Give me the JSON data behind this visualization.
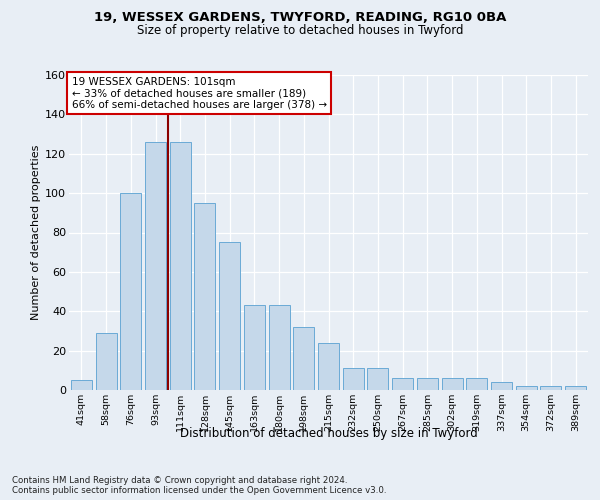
{
  "title1": "19, WESSEX GARDENS, TWYFORD, READING, RG10 0BA",
  "title2": "Size of property relative to detached houses in Twyford",
  "xlabel": "Distribution of detached houses by size in Twyford",
  "ylabel": "Number of detached properties",
  "categories": [
    "41sqm",
    "58sqm",
    "76sqm",
    "93sqm",
    "111sqm",
    "128sqm",
    "145sqm",
    "163sqm",
    "180sqm",
    "198sqm",
    "215sqm",
    "232sqm",
    "250sqm",
    "267sqm",
    "285sqm",
    "302sqm",
    "319sqm",
    "337sqm",
    "354sqm",
    "372sqm",
    "389sqm"
  ],
  "values": [
    5,
    29,
    100,
    126,
    126,
    95,
    75,
    43,
    43,
    32,
    24,
    11,
    11,
    6,
    6,
    6,
    6,
    4,
    2,
    2,
    2
  ],
  "bar_color": "#c5d8ea",
  "bar_edge_color": "#6aaad6",
  "ref_line_x": 3.5,
  "ref_line_color": "#8b0000",
  "annotation_text": "19 WESSEX GARDENS: 101sqm\n← 33% of detached houses are smaller (189)\n66% of semi-detached houses are larger (378) →",
  "annotation_box_color": "#ffffff",
  "annotation_box_edge": "#cc0000",
  "ylim": [
    0,
    160
  ],
  "yticks": [
    0,
    20,
    40,
    60,
    80,
    100,
    120,
    140,
    160
  ],
  "footnote": "Contains HM Land Registry data © Crown copyright and database right 2024.\nContains public sector information licensed under the Open Government Licence v3.0.",
  "background_color": "#e8eef5"
}
